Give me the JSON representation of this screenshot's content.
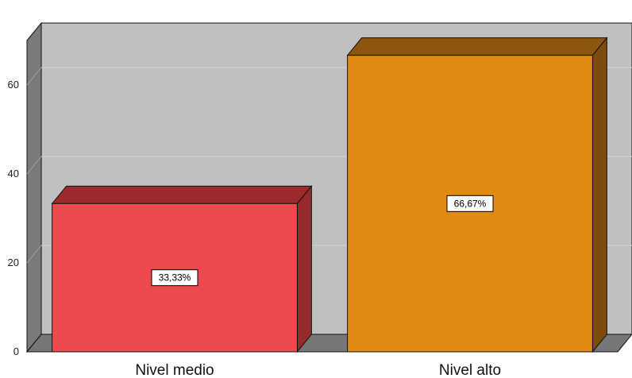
{
  "chart_data": {
    "type": "bar",
    "style": "3d",
    "categories": [
      "Nivel medio",
      "Nivel alto"
    ],
    "values": [
      33.33,
      66.67
    ],
    "data_labels": [
      "33,33%",
      "66,67%"
    ],
    "yticks": [
      0,
      20,
      40,
      60
    ],
    "ylim": [
      0,
      70
    ],
    "grid": true,
    "legend": "none",
    "colors": {
      "bars": [
        {
          "front": "#ec4a4e",
          "top": "#9c2a2c",
          "side": "#962a2b"
        },
        {
          "front": "#e08a12",
          "top": "#8c560f",
          "side": "#7d4c0c"
        }
      ],
      "wall_back": "#c0c0c0",
      "wall_left": "#7a7a7a",
      "floor": "#777777",
      "gridline": "#d4d4d4",
      "outline": "#111111"
    }
  }
}
